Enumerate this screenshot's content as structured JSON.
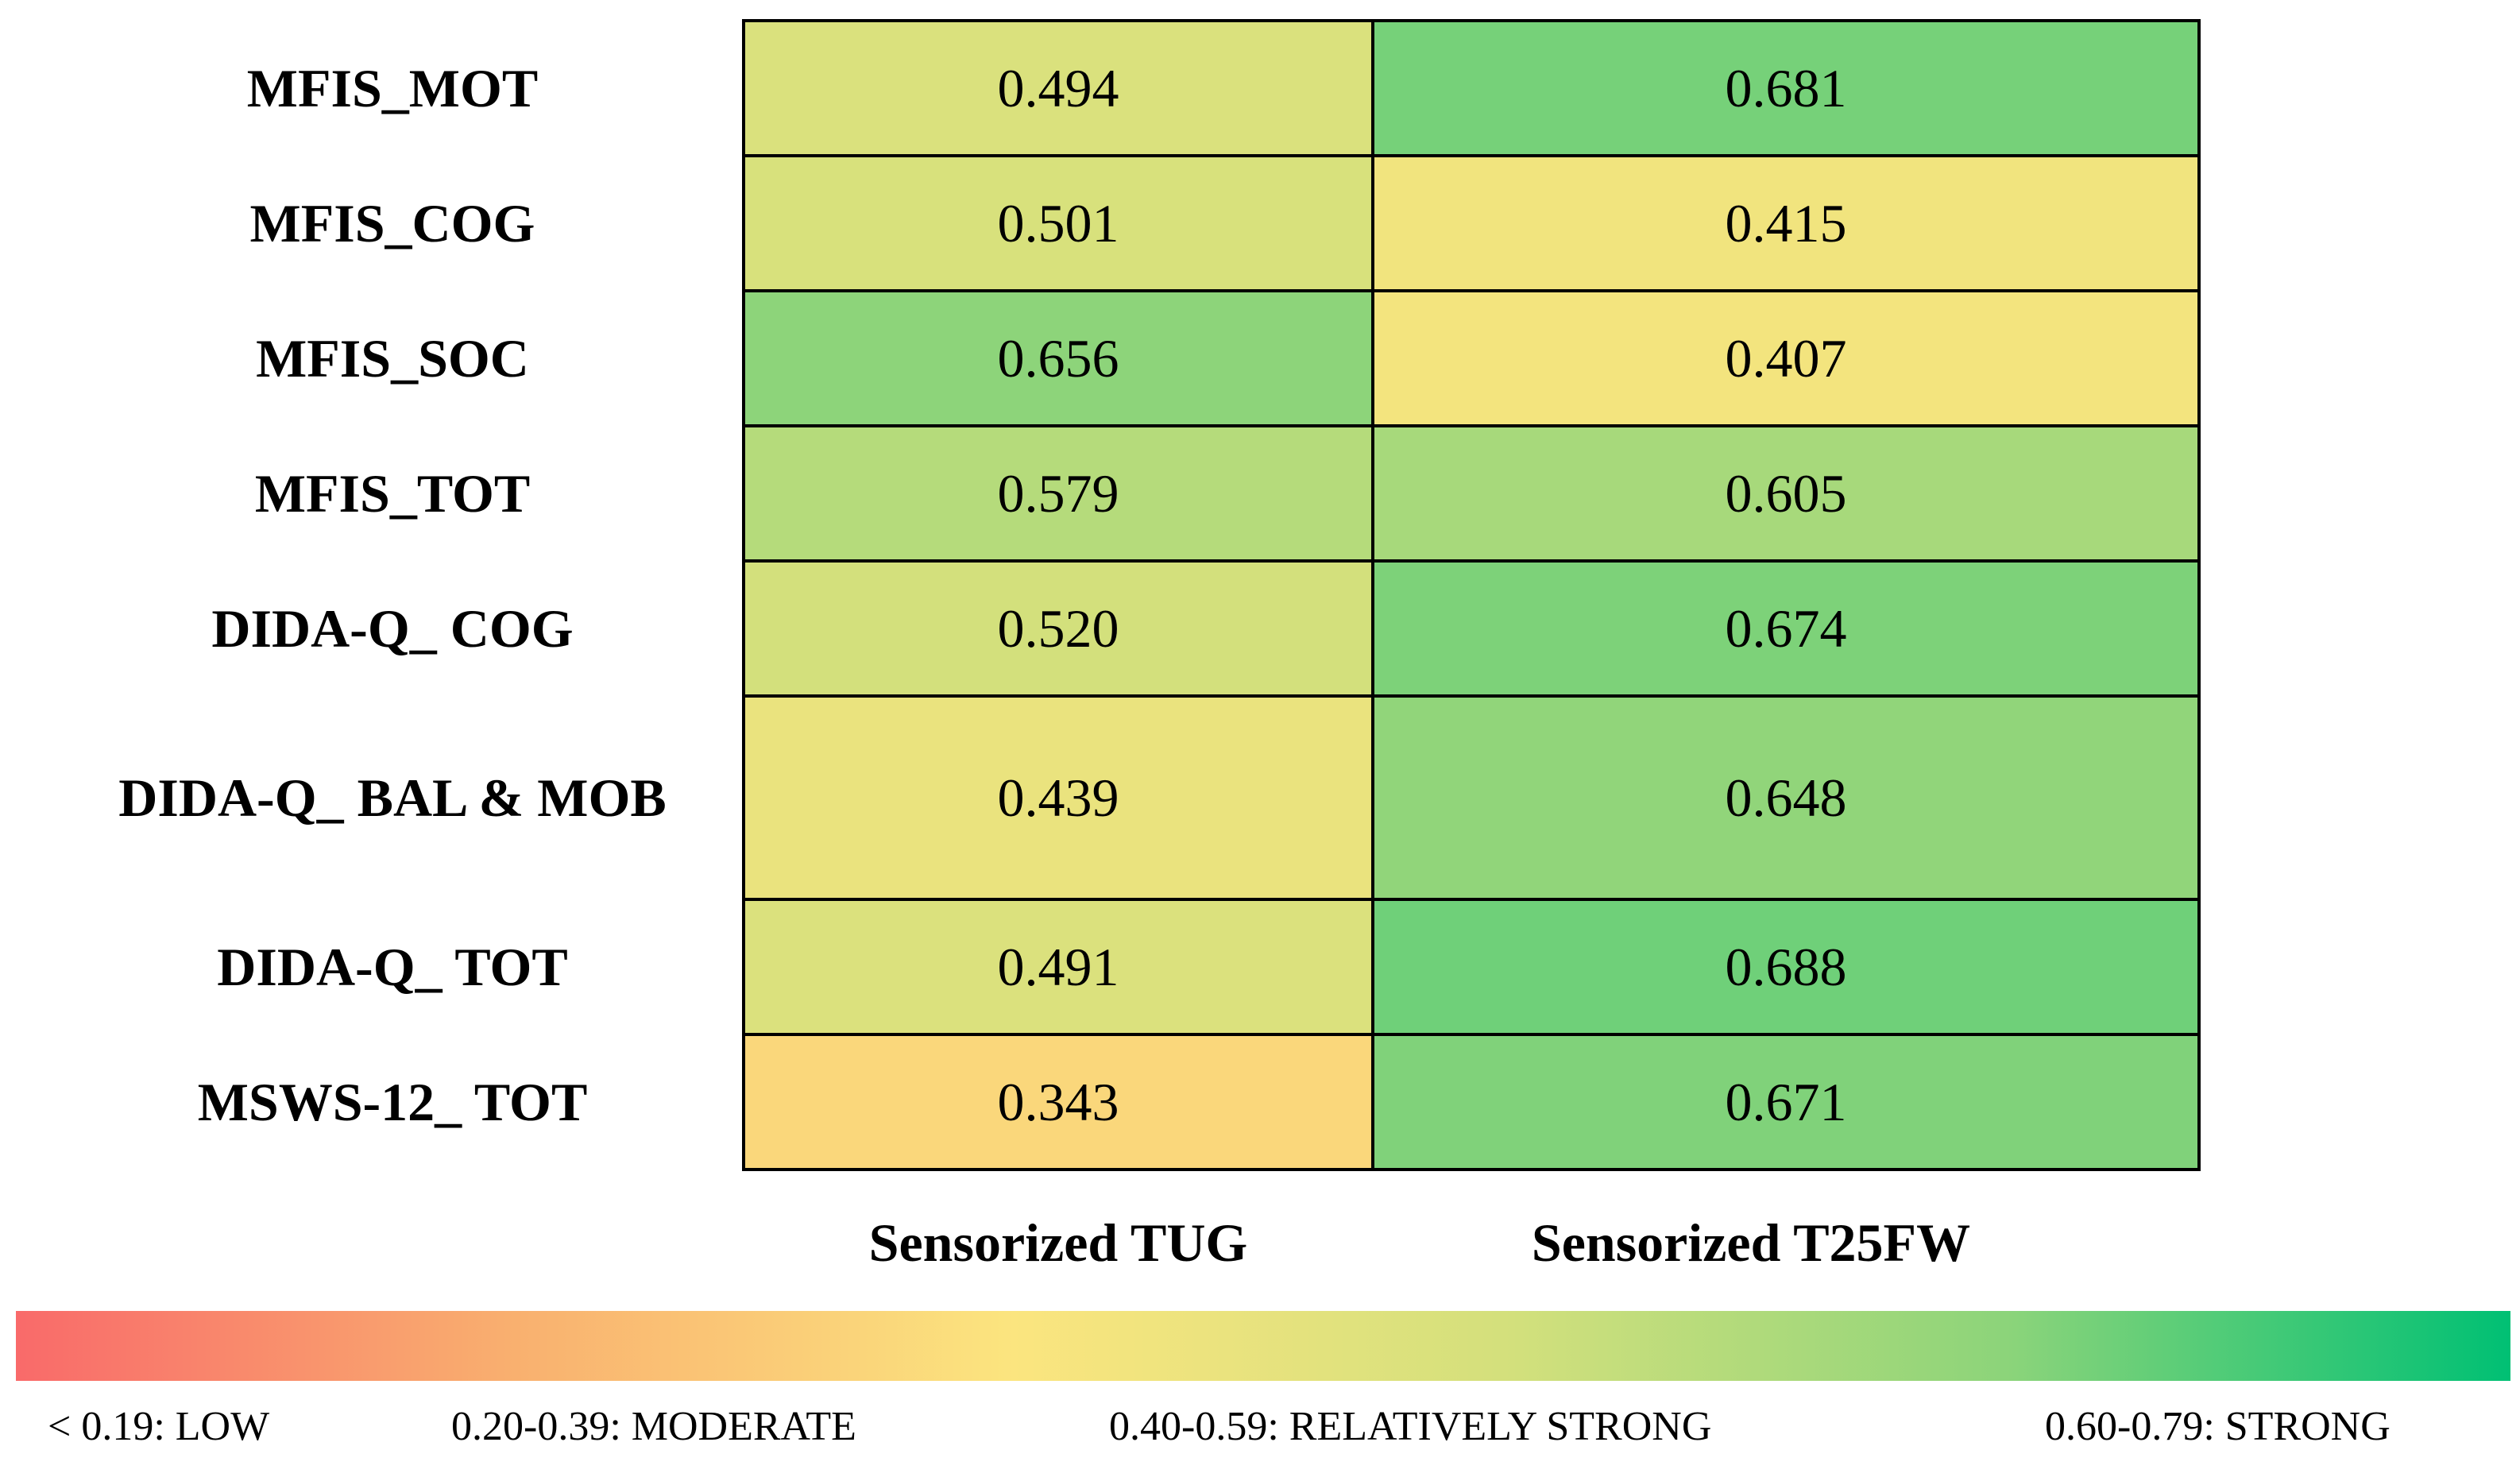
{
  "chart_data": {
    "type": "heatmap",
    "rows": [
      "MFIS_MOT",
      "MFIS_COG",
      "MFIS_SOC",
      "MFIS_TOT",
      "DIDA-Q_ COG",
      "DIDA-Q_ BAL & MOB",
      "DIDA-Q_ TOT",
      "MSWS-12_ TOT"
    ],
    "columns": [
      "Sensorized TUG",
      "Sensorized T25FW"
    ],
    "values": [
      [
        "0.494",
        "0.681"
      ],
      [
        "0.501",
        "0.415"
      ],
      [
        "0.656",
        "0.407"
      ],
      [
        "0.579",
        "0.605"
      ],
      [
        "0.520",
        "0.674"
      ],
      [
        "0.439",
        "0.648"
      ],
      [
        "0.491",
        "0.688"
      ],
      [
        "0.343",
        "0.671"
      ]
    ],
    "colorscale": {
      "stops": [
        "#f96a6a",
        "#f9b06f",
        "#fbe57f",
        "#d3e07c",
        "#8bd47a",
        "#00c074"
      ],
      "range": [
        0.1,
        0.8
      ]
    },
    "legend": [
      "< 0.19: LOW",
      "0.20-0.39: MODERATE",
      "0.40-0.59: RELATIVELY STRONG",
      "0.60-0.79: STRONG"
    ]
  }
}
